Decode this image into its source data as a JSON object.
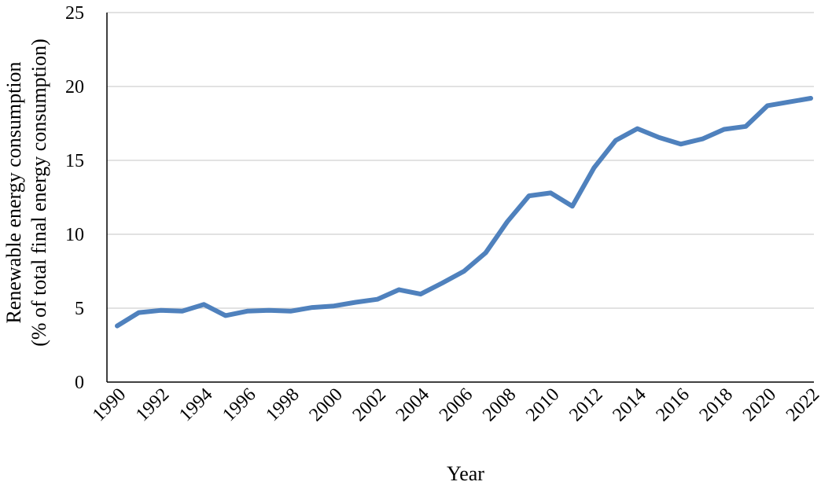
{
  "chart_data": {
    "type": "line",
    "title": "",
    "xlabel": "Year",
    "ylabel_line1": "Renewable energy consumption",
    "ylabel_line2": "(% of total final energy consumption)",
    "ylim": [
      0,
      25
    ],
    "yticks": [
      0,
      5,
      10,
      15,
      20,
      25
    ],
    "xlim": [
      1990,
      2022
    ],
    "xtick_labels": [
      "1990",
      "1992",
      "1994",
      "1996",
      "1998",
      "2000",
      "2002",
      "2004",
      "2006",
      "2008",
      "2010",
      "2012",
      "2014",
      "2016",
      "2018",
      "2020",
      "2022"
    ],
    "grid": "horizontal",
    "legend": "none",
    "series": [
      {
        "color": "#4f81bd",
        "x": [
          1990,
          1991,
          1992,
          1993,
          1994,
          1995,
          1996,
          1997,
          1998,
          1999,
          2000,
          2001,
          2002,
          2003,
          2004,
          2005,
          2006,
          2007,
          2008,
          2009,
          2010,
          2011,
          2012,
          2013,
          2014,
          2015,
          2016,
          2017,
          2018,
          2019,
          2020,
          2021,
          2022
        ],
        "values": [
          3.8,
          4.7,
          4.85,
          4.8,
          5.25,
          4.5,
          4.8,
          4.85,
          4.8,
          5.05,
          5.15,
          5.4,
          5.6,
          6.25,
          5.95,
          6.7,
          7.5,
          8.75,
          10.85,
          12.6,
          12.8,
          11.9,
          14.5,
          16.35,
          17.15,
          16.55,
          16.1,
          16.45,
          17.1,
          17.3,
          18.7,
          18.95,
          19.2
        ]
      }
    ]
  }
}
